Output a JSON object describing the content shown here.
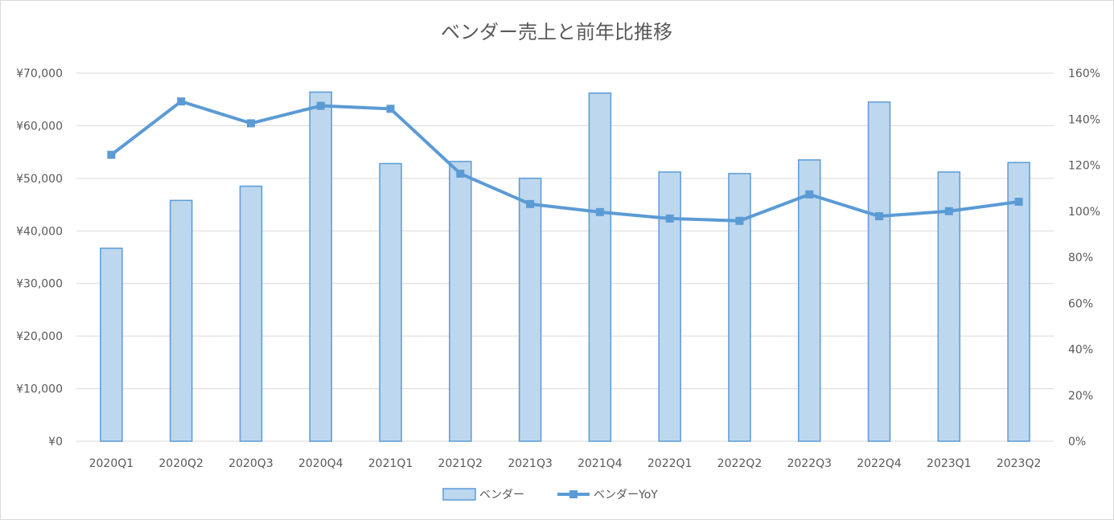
{
  "chart_data": {
    "type": "bar",
    "title": "ベンダー売上と前年比推移",
    "categories": [
      "2020Q1",
      "2020Q2",
      "2020Q3",
      "2020Q4",
      "2021Q1",
      "2021Q2",
      "2021Q3",
      "2021Q4",
      "2022Q1",
      "2022Q2",
      "2022Q3",
      "2022Q4",
      "2023Q1",
      "2023Q2"
    ],
    "series": [
      {
        "name": "ベンダー",
        "type": "bar",
        "axis": "left",
        "values": [
          36700,
          45800,
          48500,
          66400,
          52800,
          53200,
          50000,
          66200,
          51200,
          50900,
          53500,
          64500,
          51200,
          53000
        ],
        "color": "#bdd7ee",
        "border": "#5b9bd5"
      },
      {
        "name": "ベンダーYoY",
        "type": "line",
        "axis": "right",
        "values": [
          1.245,
          1.477,
          1.382,
          1.458,
          1.445,
          1.163,
          1.031,
          0.996,
          0.968,
          0.958,
          1.073,
          0.978,
          1.0,
          1.041
        ],
        "color": "#5b9bd5"
      }
    ],
    "yleft": {
      "lim": [
        0,
        70000
      ],
      "ticks": [
        0,
        10000,
        20000,
        30000,
        40000,
        50000,
        60000,
        70000
      ],
      "tick_labels": [
        "¥0",
        "¥10,000",
        "¥20,000",
        "¥30,000",
        "¥40,000",
        "¥50,000",
        "¥60,000",
        "¥70,000"
      ]
    },
    "yright": {
      "lim": [
        0,
        1.6
      ],
      "ticks": [
        0,
        0.2,
        0.4,
        0.6,
        0.8,
        1.0,
        1.2,
        1.4,
        1.6
      ],
      "tick_labels": [
        "0%",
        "20%",
        "40%",
        "60%",
        "80%",
        "100%",
        "120%",
        "140%",
        "160%"
      ]
    },
    "grid": true,
    "legend": "bottom",
    "gridline_color": "#d9d9d9"
  }
}
